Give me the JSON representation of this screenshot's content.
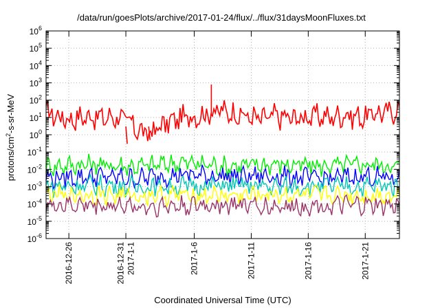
{
  "chart_data": {
    "type": "line",
    "title": "/data/run/goesPlots/archive/2017-01-24/flux/../flux/31daysMoonFluxes.txt",
    "xlabel": "Coordinated Universal Time (UTC)",
    "ylabel": {
      "base": "protons/cm",
      "exp": "2",
      "rest": "-s-sr-MeV"
    },
    "yscale": "log",
    "ylim": [
      1e-06,
      1000000.0
    ],
    "y_ticks": [
      {
        "value": 1e-06,
        "exp": "-6"
      },
      {
        "value": 1e-05,
        "exp": "-5"
      },
      {
        "value": 0.0001,
        "exp": "-4"
      },
      {
        "value": 0.001,
        "exp": "-3"
      },
      {
        "value": 0.01,
        "exp": "-2"
      },
      {
        "value": 0.1,
        "exp": "-1"
      },
      {
        "value": 1,
        "exp": "0"
      },
      {
        "value": 10,
        "exp": "1"
      },
      {
        "value": 100,
        "exp": "2"
      },
      {
        "value": 1000,
        "exp": "3"
      },
      {
        "value": 10000,
        "exp": "4"
      },
      {
        "value": 100000,
        "exp": "5"
      },
      {
        "value": 1000000,
        "exp": "6"
      }
    ],
    "y_tick_base": "10",
    "xlim": [
      "2016-12-24",
      "2017-01-24"
    ],
    "x_ticks": [
      {
        "date": "2016-12-26",
        "lines": [
          "2016-12-26"
        ]
      },
      {
        "date": "2016-12-31",
        "lines": [
          "2016-12-31",
          "2017-1-1"
        ]
      },
      {
        "date": "2017-01-06",
        "lines": [
          "2017-1-6"
        ]
      },
      {
        "date": "2017-01-11",
        "lines": [
          "2017-1-11"
        ]
      },
      {
        "date": "2017-01-16",
        "lines": [
          "2017-1-16"
        ]
      },
      {
        "date": "2017-01-21",
        "lines": [
          "2017-1-21"
        ]
      }
    ],
    "grid": true,
    "colors": {
      "red": "#ff0000",
      "green": "#00ee00",
      "blue": "#0000ff",
      "cyan": "#00c8b4",
      "yellow": "#ffff00",
      "purple": "#993366"
    },
    "series": [
      {
        "color": "#ff0000",
        "x": [
          "2016-12-24",
          "2016-12-25",
          "2016-12-26",
          "2016-12-27",
          "2016-12-28",
          "2016-12-29",
          "2016-12-30",
          "2016-12-31",
          "2017-01-01",
          "2017-01-02",
          "2017-01-03",
          "2017-01-04",
          "2017-01-05",
          "2017-01-06",
          "2017-01-07",
          "2017-01-08",
          "2017-01-09",
          "2017-01-10",
          "2017-01-11",
          "2017-01-12",
          "2017-01-13",
          "2017-01-14",
          "2017-01-15",
          "2017-01-16",
          "2017-01-17",
          "2017-01-18",
          "2017-01-19",
          "2017-01-20",
          "2017-01-21",
          "2017-01-22",
          "2017-01-23",
          "2017-01-24"
        ],
        "values": [
          20,
          12,
          8,
          10,
          12,
          9,
          11,
          8,
          2,
          1,
          3,
          6,
          10,
          12,
          15,
          25,
          20,
          15,
          10,
          8,
          12,
          10,
          9,
          11,
          12,
          10,
          15,
          12,
          10,
          20,
          18,
          30
        ]
      },
      {
        "color": "#00ee00",
        "x": [
          "2016-12-24",
          "2016-12-28",
          "2017-01-01",
          "2017-01-05",
          "2017-01-09",
          "2017-01-13",
          "2017-01-17",
          "2017-01-21",
          "2017-01-24"
        ],
        "values": [
          0.015,
          0.02,
          0.015,
          0.025,
          0.015,
          0.02,
          0.015,
          0.02,
          0.015
        ]
      },
      {
        "color": "#0000ff",
        "x": [
          "2016-12-24",
          "2016-12-28",
          "2017-01-01",
          "2017-01-05",
          "2017-01-09",
          "2017-01-13",
          "2017-01-17",
          "2017-01-21",
          "2017-01-24"
        ],
        "values": [
          0.003,
          0.004,
          0.003,
          0.005,
          0.004,
          0.004,
          0.003,
          0.004,
          0.003
        ]
      },
      {
        "color": "#00c8b4",
        "x": [
          "2016-12-24",
          "2016-12-28",
          "2017-01-01",
          "2017-01-05",
          "2017-01-09",
          "2017-01-13",
          "2017-01-17",
          "2017-01-21",
          "2017-01-24"
        ],
        "values": [
          0.001,
          0.0012,
          0.001,
          0.0011,
          0.0012,
          0.001,
          0.0011,
          0.001,
          0.0012
        ]
      },
      {
        "color": "#ffff00",
        "x": [
          "2016-12-24",
          "2016-12-28",
          "2017-01-01",
          "2017-01-05",
          "2017-01-09",
          "2017-01-13",
          "2017-01-17",
          "2017-01-21",
          "2017-01-24"
        ],
        "values": [
          0.0003,
          0.00035,
          0.0003,
          0.00032,
          0.0003,
          0.00035,
          0.0003,
          0.00032,
          0.0003
        ]
      },
      {
        "color": "#993366",
        "x": [
          "2016-12-24",
          "2016-12-28",
          "2017-01-01",
          "2017-01-05",
          "2017-01-09",
          "2017-01-13",
          "2017-01-17",
          "2017-01-21",
          "2017-01-24"
        ],
        "values": [
          8e-05,
          9e-05,
          7e-05,
          8e-05,
          9e-05,
          7e-05,
          8e-05,
          8e-05,
          7e-05
        ]
      }
    ],
    "spike": {
      "color": "#ff0000",
      "x": "2017-01-07T12:00",
      "value": 800
    },
    "dips": [
      {
        "x": "2016-12-31",
        "value": 0.3
      },
      {
        "x": "2017-01-02",
        "value": 0.5
      }
    ]
  }
}
